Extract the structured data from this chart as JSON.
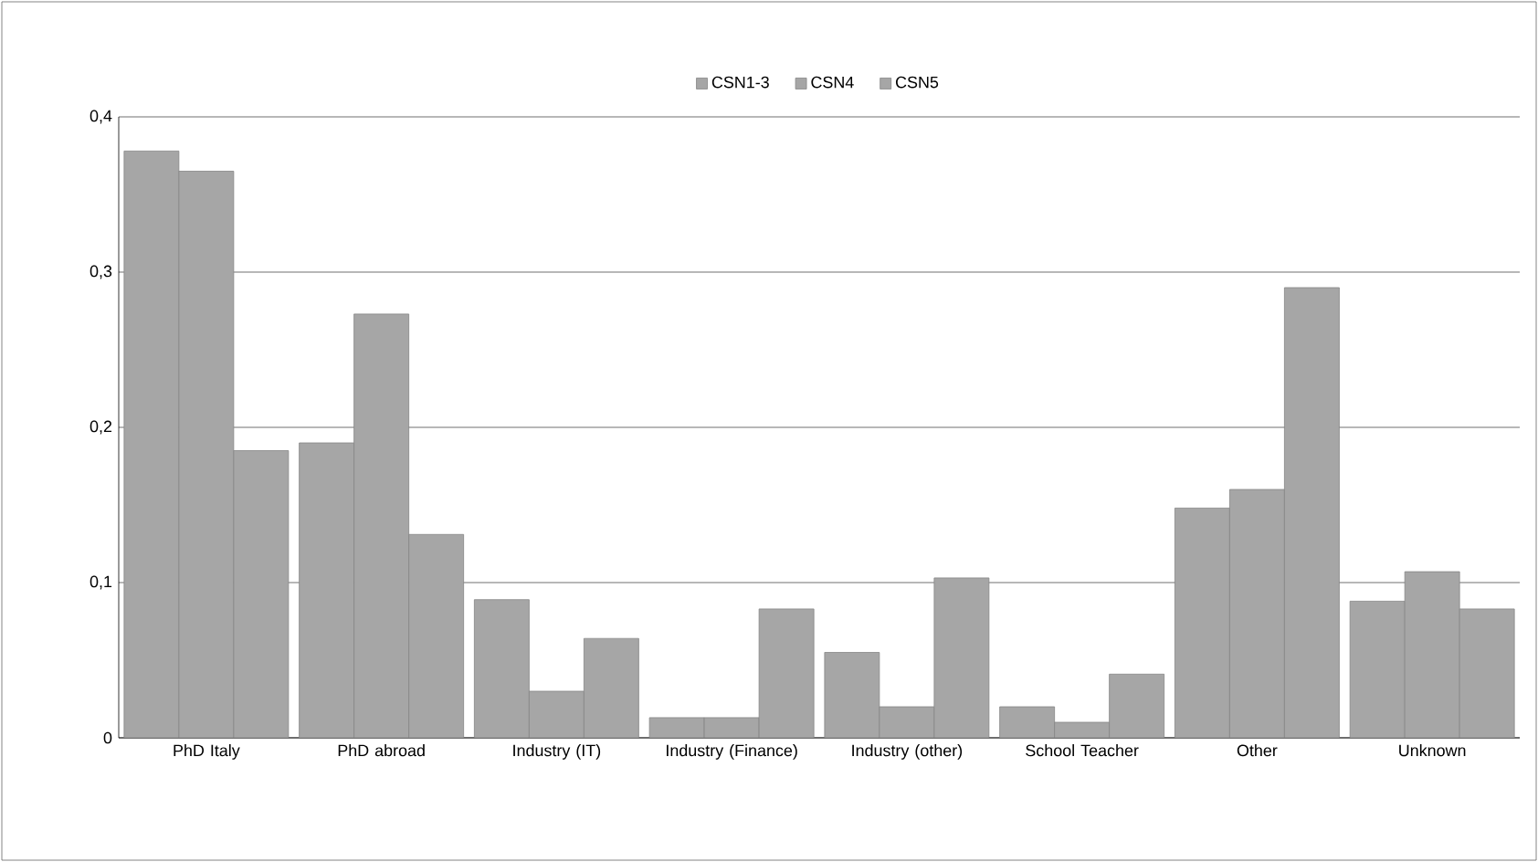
{
  "chart_data": {
    "type": "bar",
    "categories": [
      "PhD Italy",
      "PhD abroad",
      "Industry (IT)",
      "Industry (Finance)",
      "Industry (other)",
      "School Teacher",
      "Other",
      "Unknown"
    ],
    "series": [
      {
        "name": "CSN1-3",
        "color": "#a6a6a6",
        "values": [
          0.378,
          0.19,
          0.089,
          0.013,
          0.055,
          0.02,
          0.148,
          0.088
        ]
      },
      {
        "name": "CSN4",
        "color": "#a6a6a6",
        "values": [
          0.365,
          0.273,
          0.03,
          0.013,
          0.02,
          0.01,
          0.16,
          0.107
        ]
      },
      {
        "name": "CSN5",
        "color": "#a6a6a6",
        "values": [
          0.185,
          0.131,
          0.064,
          0.083,
          0.103,
          0.041,
          0.29,
          0.083
        ]
      }
    ],
    "ylim": [
      0,
      0.4
    ],
    "yticks": [
      {
        "value": 0,
        "label": "0"
      },
      {
        "value": 0.1,
        "label": "0,1"
      },
      {
        "value": 0.2,
        "label": "0,2"
      },
      {
        "value": 0.3,
        "label": "0,3"
      },
      {
        "value": 0.4,
        "label": "0,4"
      }
    ],
    "grid": "y",
    "legend": "top"
  }
}
